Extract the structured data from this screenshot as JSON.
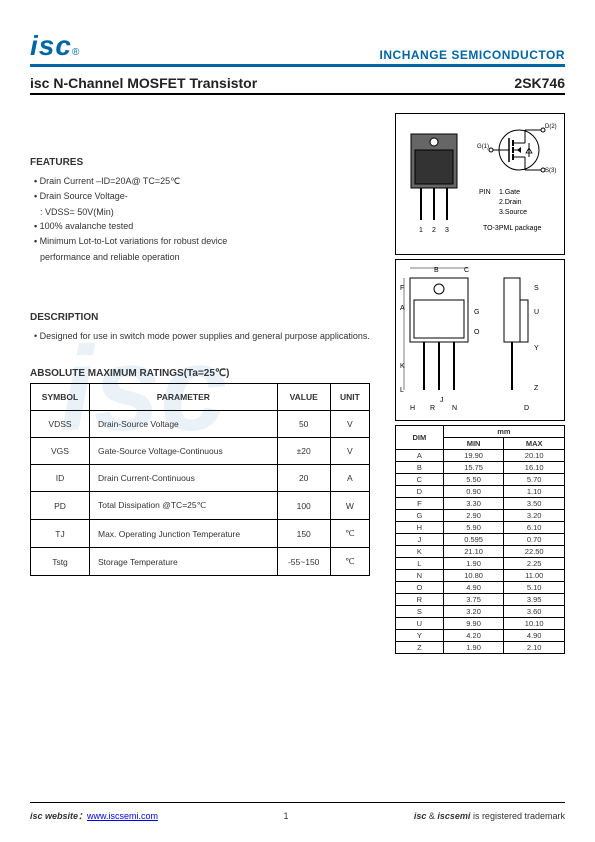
{
  "header": {
    "logo_text": "isc",
    "logo_r": "®",
    "company": "INCHANGE SEMICONDUCTOR"
  },
  "title": {
    "main": "isc N-Channel MOSFET Transistor",
    "part": "2SK746"
  },
  "features": {
    "heading": "FEATURES",
    "items": [
      "Drain Current –ID=20A@ TC=25℃",
      "Drain Source Voltage-",
      "100% avalanche tested",
      "Minimum Lot-to-Lot variations for robust device"
    ],
    "sub1": ": VDSS= 50V(Min)",
    "sub2": "performance and reliable operation"
  },
  "description": {
    "heading": "DESCRIPTION",
    "text": "Designed for use in switch mode power supplies and general purpose applications."
  },
  "ratings": {
    "heading": "ABSOLUTE MAXIMUM RATINGS(Ta=25℃)",
    "headers": {
      "c1": "SYMBOL",
      "c2": "PARAMETER",
      "c3": "VALUE",
      "c4": "UNIT"
    },
    "rows": [
      {
        "sym": "VDSS",
        "param": "Drain-Source Voltage",
        "val": "50",
        "unit": "V"
      },
      {
        "sym": "VGS",
        "param": "Gate-Source Voltage-Continuous",
        "val": "±20",
        "unit": "V"
      },
      {
        "sym": "ID",
        "param": "Drain Current-Continuous",
        "val": "20",
        "unit": "A"
      },
      {
        "sym": "PD",
        "param": "Total Dissipation @TC=25℃",
        "val": "100",
        "unit": "W"
      },
      {
        "sym": "TJ",
        "param": "Max. Operating Junction Temperature",
        "val": "150",
        "unit": "℃"
      },
      {
        "sym": "Tstg",
        "param": "Storage Temperature",
        "val": "-55~150",
        "unit": "℃"
      }
    ]
  },
  "package": {
    "pin_label": "PIN",
    "pins": [
      "1.Gate",
      "2.Drain",
      "3.Source"
    ],
    "pkg_name": "TO-3PML package",
    "pin_nums": "1   2   3",
    "drain_label": "D(2)",
    "gate_label": "G(1)",
    "source_label": "S(3)"
  },
  "dimensions": {
    "header": {
      "dim": "DIM",
      "unit": "mm",
      "min": "MIN",
      "max": "MAX"
    },
    "rows": [
      {
        "d": "A",
        "min": "19.90",
        "max": "20.10"
      },
      {
        "d": "B",
        "min": "15.75",
        "max": "16.10"
      },
      {
        "d": "C",
        "min": "5.50",
        "max": "5.70"
      },
      {
        "d": "D",
        "min": "0.90",
        "max": "1.10"
      },
      {
        "d": "F",
        "min": "3.30",
        "max": "3.50"
      },
      {
        "d": "G",
        "min": "2.90",
        "max": "3.20"
      },
      {
        "d": "H",
        "min": "5.90",
        "max": "6.10"
      },
      {
        "d": "J",
        "min": "0.595",
        "max": "0.70"
      },
      {
        "d": "K",
        "min": "21.10",
        "max": "22.50"
      },
      {
        "d": "L",
        "min": "1.90",
        "max": "2.25"
      },
      {
        "d": "N",
        "min": "10.80",
        "max": "11.00"
      },
      {
        "d": "O",
        "min": "4.90",
        "max": "5.10"
      },
      {
        "d": "R",
        "min": "3.75",
        "max": "3.95"
      },
      {
        "d": "S",
        "min": "3.20",
        "max": "3.60"
      },
      {
        "d": "U",
        "min": "9.90",
        "max": "10.10"
      },
      {
        "d": "Y",
        "min": "4.20",
        "max": "4.90"
      },
      {
        "d": "Z",
        "min": "1.90",
        "max": "2.10"
      }
    ]
  },
  "footer": {
    "left_label": "isc website：",
    "link": "www.iscsemi.com",
    "page": "1",
    "right_bold1": "isc",
    "right_mid": " & ",
    "right_bold2": "iscsemi",
    "right_end": " is registered trademark"
  }
}
